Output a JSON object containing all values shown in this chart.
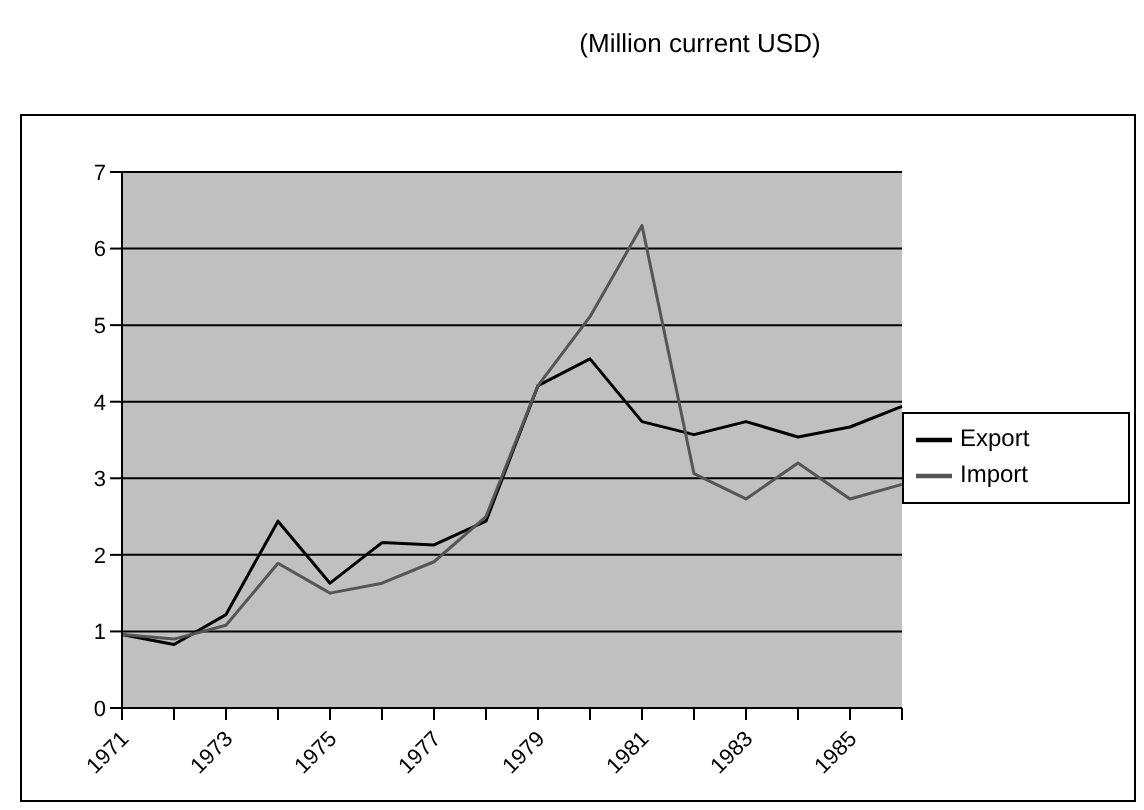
{
  "chart_data": {
    "type": "line",
    "title": "(Million current USD)",
    "categories": [
      "1971",
      null,
      "1973",
      null,
      "1975",
      null,
      "1977",
      null,
      "1979",
      null,
      "1981",
      null,
      "1983",
      null,
      "1985",
      null
    ],
    "series": [
      {
        "name": "Export",
        "color": "#000000",
        "values": [
          0.96,
          0.83,
          1.22,
          2.44,
          1.63,
          2.16,
          2.13,
          2.44,
          4.21,
          4.56,
          3.74,
          3.57,
          3.74,
          3.54,
          3.67,
          3.94
        ]
      },
      {
        "name": "Import",
        "color": "#555555",
        "values": [
          0.96,
          0.9,
          1.08,
          1.89,
          1.5,
          1.63,
          1.91,
          2.5,
          4.21,
          5.11,
          6.3,
          3.06,
          2.73,
          3.2,
          2.73,
          2.92
        ]
      }
    ],
    "ylim": [
      0,
      7
    ],
    "yticks": [
      0,
      1,
      2,
      3,
      4,
      5,
      6,
      7
    ],
    "grid": "y",
    "legend": "right",
    "marker": "none",
    "line_style": "solid"
  }
}
